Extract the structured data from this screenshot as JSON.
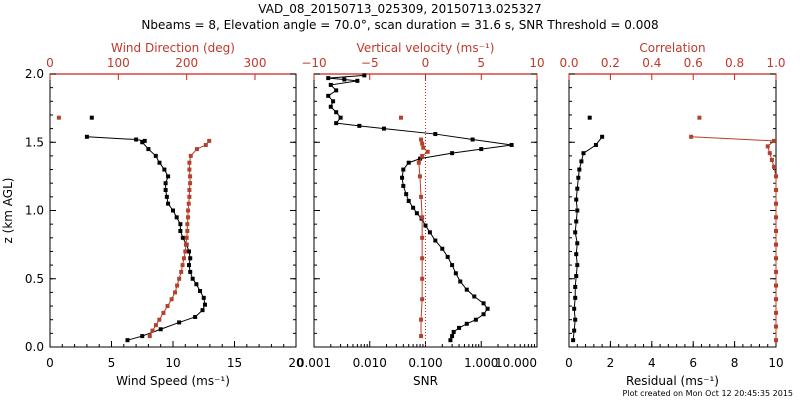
{
  "header": {
    "title": "VAD_08_20150713_025309, 20150713.025327",
    "subtitle": "Nbeams = 8, Elevation angle = 70.0°, scan duration = 31.6 s, SNR Threshold = 0.008"
  },
  "footer": {
    "text": "Plot created on Mon Oct 12 20:45:35 2015"
  },
  "colors": {
    "black_series": "#000000",
    "red_series": "#b5402c",
    "red_axis": "#d0221a"
  },
  "chart_data": [
    {
      "type": "line",
      "name": "wind",
      "ylabel": "z (km AGL)",
      "ylim": [
        0,
        2
      ],
      "yticks": [
        "0.0",
        "0.5",
        "1.0",
        "1.5",
        "2.0"
      ],
      "xlabel_bottom": "Wind Speed (ms⁻¹)",
      "xlim_bottom": [
        0,
        20
      ],
      "xticks_bottom": [
        "0",
        "5",
        "10",
        "15",
        "20"
      ],
      "xlabel_top": "Wind Direction (deg)",
      "xlim_top": [
        0,
        360
      ],
      "xticks_top": [
        "0",
        "100",
        "200",
        "300"
      ],
      "series": [
        {
          "axis": "bottom",
          "color": "black",
          "points": [
            [
              6.3,
              0.05
            ],
            [
              7.5,
              0.08
            ],
            [
              9.0,
              0.13
            ],
            [
              10.5,
              0.18
            ],
            [
              11.8,
              0.22
            ],
            [
              12.4,
              0.27
            ],
            [
              12.6,
              0.31
            ],
            [
              12.5,
              0.36
            ],
            [
              12.2,
              0.41
            ],
            [
              11.9,
              0.46
            ],
            [
              11.6,
              0.5
            ],
            [
              11.4,
              0.55
            ],
            [
              11.3,
              0.6
            ],
            [
              11.4,
              0.65
            ],
            [
              11.3,
              0.7
            ],
            [
              11.1,
              0.75
            ],
            [
              10.8,
              0.8
            ],
            [
              10.6,
              0.85
            ],
            [
              10.6,
              0.9
            ],
            [
              10.3,
              0.95
            ],
            [
              10.0,
              1.0
            ],
            [
              9.6,
              1.05
            ],
            [
              9.5,
              1.1
            ],
            [
              9.4,
              1.15
            ],
            [
              9.4,
              1.2
            ],
            [
              9.6,
              1.25
            ],
            [
              9.3,
              1.3
            ],
            [
              8.9,
              1.35
            ],
            [
              8.6,
              1.4
            ],
            [
              8.0,
              1.45
            ],
            [
              7.5,
              1.5
            ],
            [
              7.7,
              1.51
            ],
            [
              7.0,
              1.52
            ],
            [
              3.0,
              1.54
            ]
          ]
        },
        {
          "axis": "bottom",
          "color": "black",
          "points": [
            [
              3.4,
              1.68
            ]
          ]
        },
        {
          "axis": "top",
          "color": "red",
          "points": [
            [
              146,
              0.08
            ],
            [
              150,
              0.12
            ],
            [
              155,
              0.16
            ],
            [
              160,
              0.2
            ],
            [
              166,
              0.25
            ],
            [
              172,
              0.3
            ],
            [
              178,
              0.35
            ],
            [
              183,
              0.4
            ],
            [
              186,
              0.45
            ],
            [
              189,
              0.5
            ],
            [
              192,
              0.55
            ],
            [
              194,
              0.6
            ],
            [
              196,
              0.65
            ],
            [
              198,
              0.7
            ],
            [
              199,
              0.75
            ],
            [
              200,
              0.8
            ],
            [
              201,
              0.85
            ],
            [
              201,
              0.9
            ],
            [
              202,
              0.95
            ],
            [
              202,
              1.0
            ],
            [
              203,
              1.05
            ],
            [
              204,
              1.1
            ],
            [
              204,
              1.15
            ],
            [
              205,
              1.2
            ],
            [
              205,
              1.25
            ],
            [
              204,
              1.3
            ],
            [
              204,
              1.35
            ],
            [
              206,
              1.4
            ],
            [
              215,
              1.45
            ],
            [
              228,
              1.48
            ],
            [
              233,
              1.51
            ]
          ]
        },
        {
          "axis": "top",
          "color": "red",
          "points": [
            [
              13,
              1.68
            ]
          ]
        }
      ]
    },
    {
      "type": "line",
      "name": "snr",
      "ylim": [
        0,
        2
      ],
      "xlabel_bottom": "SNR",
      "xscale": "log",
      "xlim_bottom": [
        0.001,
        10
      ],
      "xticks_bottom": [
        "0.001",
        "0.010",
        "0.100",
        "1.000",
        "10.000"
      ],
      "xlabel_top": "Vertical velocity (ms⁻¹)",
      "xlim_top": [
        -10,
        10
      ],
      "xticks_top": [
        "−10",
        "−5",
        "0",
        "5",
        "10"
      ],
      "series": [
        {
          "axis": "bottom",
          "color": "black",
          "points": [
            [
              0.28,
              0.05
            ],
            [
              0.3,
              0.08
            ],
            [
              0.32,
              0.11
            ],
            [
              0.4,
              0.14
            ],
            [
              0.55,
              0.17
            ],
            [
              0.8,
              0.2
            ],
            [
              1.1,
              0.24
            ],
            [
              1.3,
              0.28
            ],
            [
              1.1,
              0.32
            ],
            [
              0.75,
              0.37
            ],
            [
              0.55,
              0.42
            ],
            [
              0.42,
              0.48
            ],
            [
              0.35,
              0.54
            ],
            [
              0.3,
              0.6
            ],
            [
              0.25,
              0.66
            ],
            [
              0.2,
              0.72
            ],
            [
              0.15,
              0.78
            ],
            [
              0.12,
              0.84
            ],
            [
              0.1,
              0.89
            ],
            [
              0.085,
              0.94
            ],
            [
              0.07,
              0.98
            ],
            [
              0.06,
              1.02
            ],
            [
              0.05,
              1.07
            ],
            [
              0.045,
              1.12
            ],
            [
              0.04,
              1.18
            ],
            [
              0.038,
              1.24
            ],
            [
              0.04,
              1.3
            ],
            [
              0.05,
              1.35
            ],
            [
              0.08,
              1.38
            ],
            [
              0.3,
              1.42
            ],
            [
              1.0,
              1.45
            ],
            [
              3.5,
              1.48
            ],
            [
              0.7,
              1.52
            ],
            [
              0.15,
              1.56
            ],
            [
              0.018,
              1.6
            ],
            [
              0.0065,
              1.62
            ],
            [
              0.0025,
              1.64
            ],
            [
              0.003,
              1.68
            ],
            [
              0.0025,
              1.72
            ],
            [
              0.002,
              1.76
            ],
            [
              0.0022,
              1.8
            ],
            [
              0.0018,
              1.84
            ],
            [
              0.0025,
              1.88
            ],
            [
              0.002,
              1.92
            ],
            [
              0.006,
              1.95
            ],
            [
              0.0035,
              1.96
            ],
            [
              0.0018,
              1.97
            ],
            [
              0.008,
              1.99
            ]
          ]
        },
        {
          "axis": "top",
          "color": "red",
          "points": [
            [
              -0.4,
              0.08
            ],
            [
              -0.4,
              0.2
            ],
            [
              -0.3,
              0.35
            ],
            [
              -0.3,
              0.5
            ],
            [
              -0.3,
              0.65
            ],
            [
              -0.3,
              0.8
            ],
            [
              -0.3,
              0.95
            ],
            [
              -0.4,
              1.1
            ],
            [
              -0.5,
              1.25
            ],
            [
              -0.6,
              1.35
            ],
            [
              -0.3,
              1.4
            ],
            [
              0.2,
              1.43
            ],
            [
              -0.2,
              1.46
            ],
            [
              -0.3,
              1.49
            ],
            [
              -0.4,
              1.52
            ]
          ]
        },
        {
          "axis": "top",
          "color": "red",
          "points": [
            [
              -2.2,
              1.68
            ]
          ]
        }
      ]
    },
    {
      "type": "line",
      "name": "residual",
      "ylim": [
        0,
        2
      ],
      "xlabel_bottom": "Residual (ms⁻¹)",
      "xlim_bottom": [
        0,
        10
      ],
      "xticks_bottom": [
        "0",
        "2",
        "4",
        "6",
        "8",
        "10"
      ],
      "xlabel_top": "Correlation",
      "xlim_top": [
        0,
        1
      ],
      "xticks_top": [
        "0.0",
        "0.2",
        "0.4",
        "0.6",
        "0.8",
        "1.0"
      ],
      "series": [
        {
          "axis": "bottom",
          "color": "black",
          "points": [
            [
              0.2,
              0.05
            ],
            [
              0.25,
              0.12
            ],
            [
              0.3,
              0.2
            ],
            [
              0.25,
              0.28
            ],
            [
              0.3,
              0.36
            ],
            [
              0.3,
              0.44
            ],
            [
              0.35,
              0.52
            ],
            [
              0.4,
              0.6
            ],
            [
              0.35,
              0.68
            ],
            [
              0.4,
              0.76
            ],
            [
              0.3,
              0.84
            ],
            [
              0.35,
              0.92
            ],
            [
              0.4,
              1.0
            ],
            [
              0.35,
              1.08
            ],
            [
              0.4,
              1.16
            ],
            [
              0.45,
              1.24
            ],
            [
              0.5,
              1.3
            ],
            [
              0.6,
              1.36
            ],
            [
              0.7,
              1.42
            ],
            [
              1.3,
              1.48
            ],
            [
              1.6,
              1.54
            ]
          ]
        },
        {
          "axis": "bottom",
          "color": "black",
          "points": [
            [
              1.0,
              1.68
            ]
          ]
        },
        {
          "axis": "top",
          "color": "red",
          "points": [
            [
              1.0,
              0.05
            ],
            [
              1.0,
              0.15
            ],
            [
              1.0,
              0.25
            ],
            [
              1.0,
              0.35
            ],
            [
              1.0,
              0.45
            ],
            [
              1.0,
              0.55
            ],
            [
              1.0,
              0.65
            ],
            [
              1.0,
              0.75
            ],
            [
              1.0,
              0.85
            ],
            [
              1.0,
              0.95
            ],
            [
              1.0,
              1.05
            ],
            [
              1.0,
              1.15
            ],
            [
              1.0,
              1.25
            ],
            [
              0.99,
              1.32
            ],
            [
              0.98,
              1.37
            ],
            [
              0.97,
              1.42
            ],
            [
              0.96,
              1.47
            ],
            [
              0.99,
              1.51
            ],
            [
              0.59,
              1.54
            ]
          ]
        },
        {
          "axis": "top",
          "color": "red",
          "points": [
            [
              0.63,
              1.68
            ]
          ]
        }
      ]
    }
  ]
}
